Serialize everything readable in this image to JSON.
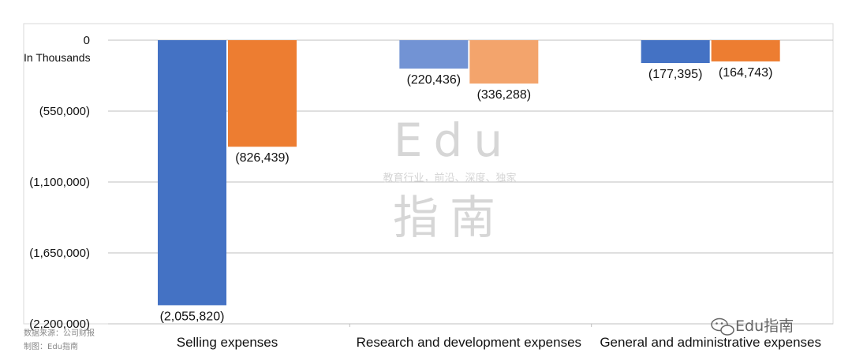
{
  "chart_data": {
    "type": "bar",
    "unit_label": "In Thousands",
    "categories": [
      "Selling expenses",
      "Research and development expenses",
      "General and administrative expenses"
    ],
    "series": [
      {
        "color": "#4472c4",
        "light_color": "#7293d4",
        "values": [
          -2055820,
          -220436,
          -177395
        ]
      },
      {
        "color": "#ed7d31",
        "light_color": "#f3a46c",
        "values": [
          -826439,
          -336288,
          -164743
        ]
      }
    ],
    "data_labels": [
      [
        "(2,055,820)",
        "(220,436)",
        "(177,395)"
      ],
      [
        "(826,439)",
        "(336,288)",
        "(164,743)"
      ]
    ],
    "highlight_category": 1,
    "ylim": [
      -2200000,
      0
    ],
    "yticks": [
      0,
      -550000,
      -1100000,
      -1650000,
      -2200000
    ],
    "ytick_labels": [
      "0",
      "(550,000)",
      "(1,100,000)",
      "(1,650,000)",
      "(2,200,000)"
    ],
    "grid": true,
    "title": "",
    "xlabel": "",
    "ylabel": ""
  },
  "watermark": {
    "line1": "Edu",
    "tagline": "教育行业，前沿、深度、独家",
    "line2": "指南"
  },
  "footer": {
    "source": "数据来源：公司财报",
    "maker": "制图：Edu指南",
    "brand": "Edu指南"
  }
}
